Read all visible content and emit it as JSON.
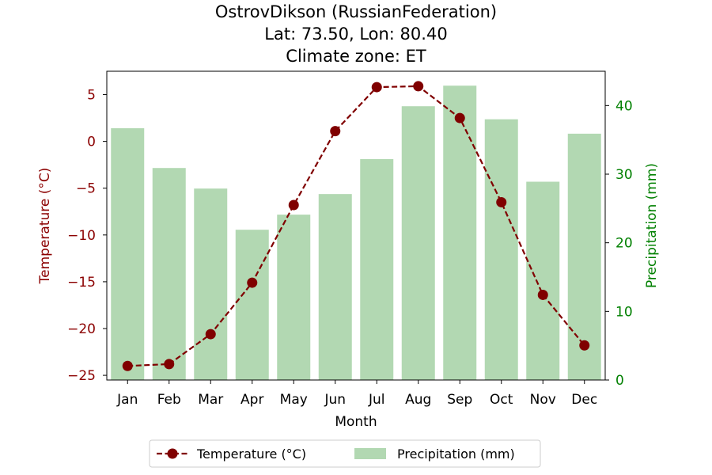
{
  "chart_data": {
    "type": "bar+line",
    "title_lines": [
      "OstrovDikson (RussianFederation)",
      "Lat: 73.50, Lon: 80.40",
      "Climate zone: ET"
    ],
    "xlabel": "Month",
    "ylabel_left": "Temperature (°C)",
    "ylabel_right": "Precipitation (mm)",
    "categories": [
      "Jan",
      "Feb",
      "Mar",
      "Apr",
      "May",
      "Jun",
      "Jul",
      "Aug",
      "Sep",
      "Oct",
      "Nov",
      "Dec"
    ],
    "temperature": {
      "name": "Temperature (°C)",
      "color": "#800000",
      "values": [
        -24.0,
        -23.8,
        -20.6,
        -15.1,
        -6.8,
        1.1,
        5.8,
        5.9,
        2.5,
        -6.5,
        -16.4,
        -21.8
      ]
    },
    "precipitation": {
      "name": "Precipitation (mm)",
      "color": "#b2d8b2",
      "values": [
        36.7,
        30.9,
        27.9,
        21.9,
        24.1,
        27.1,
        32.2,
        39.9,
        42.9,
        38.0,
        28.9,
        35.9
      ]
    },
    "ylim_left": [
      -25.5,
      7.5
    ],
    "yticks_left": [
      5,
      0,
      -5,
      -10,
      -15,
      -20,
      -25
    ],
    "ylim_right": [
      0,
      45
    ],
    "yticks_right": [
      0,
      10,
      20,
      30,
      40
    ],
    "left_axis_color": "#8b0000",
    "right_axis_color": "#008000",
    "legend_location": "bottom-center",
    "grid": false
  }
}
